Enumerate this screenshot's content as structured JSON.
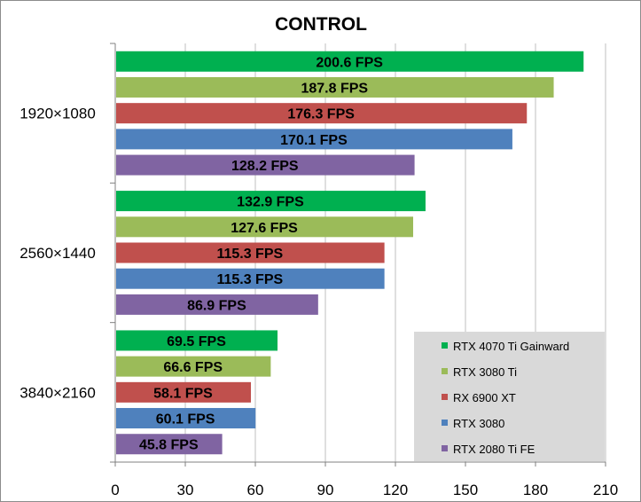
{
  "chart_data": {
    "type": "bar",
    "orientation": "horizontal",
    "title": "CONTROL",
    "xlabel": "",
    "ylabel": "",
    "xlim": [
      0,
      210
    ],
    "x_ticks": [
      "0",
      "30",
      "60",
      "90",
      "120",
      "150",
      "180",
      "210"
    ],
    "grid": true,
    "legend_position": "bottom-right",
    "categories": [
      "1920×1080",
      "2560×1440",
      "3840×2160"
    ],
    "series": [
      {
        "name": "RTX 4070 Ti Gainward",
        "color": "#00b050",
        "values": [
          200.6,
          132.9,
          69.5
        ],
        "labels": [
          "200.6 FPS",
          "132.9 FPS",
          "69.5 FPS"
        ]
      },
      {
        "name": "RTX 3080 Ti",
        "color": "#9bbb59",
        "values": [
          187.8,
          127.6,
          66.6
        ],
        "labels": [
          "187.8 FPS",
          "127.6 FPS",
          "66.6 FPS"
        ]
      },
      {
        "name": "RX 6900 XT",
        "color": "#c0504d",
        "values": [
          176.3,
          115.3,
          58.1
        ],
        "labels": [
          "176.3 FPS",
          "115.3 FPS",
          "58.1 FPS"
        ]
      },
      {
        "name": "RTX 3080",
        "color": "#4f81bd",
        "values": [
          170.1,
          115.3,
          60.1
        ],
        "labels": [
          "170.1 FPS",
          "115.3 FPS",
          "60.1 FPS"
        ]
      },
      {
        "name": "RTX 2080 Ti FE",
        "color": "#8064a2",
        "values": [
          128.2,
          86.9,
          45.8
        ],
        "labels": [
          "128.2 FPS",
          "86.9 FPS",
          "45.8 FPS"
        ]
      }
    ]
  },
  "style": {
    "grid_color": "#bfbfbf",
    "axis_color": "#808080",
    "legend_bg": "#d9d9d9"
  }
}
